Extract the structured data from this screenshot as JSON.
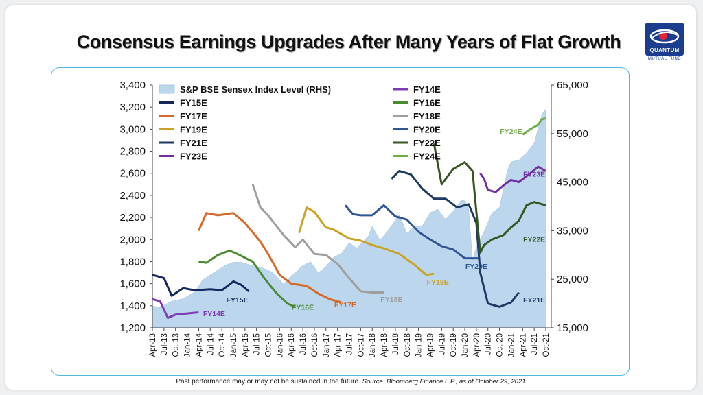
{
  "title": "Consensus Earnings Upgrades After Many Years of Flat Growth",
  "logo": {
    "name": "QUANTUM",
    "sub": "MUTUAL FUND"
  },
  "footer": {
    "note": "Past performance may or may not be sustained in the future.",
    "source": "Source: Bloomberg Finance L.P.; as of October 29, 2021"
  },
  "chart_data": {
    "type": "line",
    "title": "",
    "ylabel": "",
    "y2label": "",
    "ylim": [
      1200,
      3400
    ],
    "y2lim": [
      15000,
      65000
    ],
    "yticks": [
      "1,200",
      "1,400",
      "1,600",
      "1,800",
      "2,000",
      "2,200",
      "2,400",
      "2,600",
      "2,800",
      "3,000",
      "3,200",
      "3,400"
    ],
    "y2ticks": [
      "15,000",
      "25,000",
      "35,000",
      "45,000",
      "55,000",
      "65,000"
    ],
    "xticks": [
      "Apr-13",
      "Jul-13",
      "Oct-13",
      "Jan-14",
      "Apr-14",
      "Jul-14",
      "Oct-14",
      "Jan-15",
      "Apr-15",
      "Jul-15",
      "Oct-15",
      "Jan-16",
      "Apr-16",
      "Jul-16",
      "Oct-16",
      "Jan-17",
      "Apr-17",
      "Jul-17",
      "Oct-17",
      "Jan-18",
      "Apr-18",
      "Jul-18",
      "Oct-18",
      "Jan-19",
      "Apr-19",
      "Jul-19",
      "Oct-19",
      "Jan-20",
      "Apr-20",
      "Jul-20",
      "Oct-20",
      "Jan-21",
      "Apr-21",
      "Jul-21",
      "Oct-21"
    ],
    "legend_placement": "top-left",
    "area_series": {
      "name": "S&P BSE Sensex Index Level (RHS)",
      "color": "#bcd6ee",
      "x": [
        "Apr-13",
        "Jun-13",
        "Sep-13",
        "Dec-13",
        "Mar-14",
        "May-14",
        "Aug-14",
        "Nov-14",
        "Jan-15",
        "Mar-15",
        "Jun-15",
        "Aug-15",
        "Nov-15",
        "Feb-16",
        "Apr-16",
        "Jul-16",
        "Sep-16",
        "Nov-16",
        "Jan-17",
        "Mar-17",
        "May-17",
        "Jul-17",
        "Sep-17",
        "Dec-17",
        "Jan-18",
        "Mar-18",
        "May-18",
        "Aug-18",
        "Oct-18",
        "Dec-18",
        "Feb-19",
        "Apr-19",
        "Jun-19",
        "Aug-19",
        "Oct-19",
        "Dec-19",
        "Jan-20",
        "Feb-20",
        "Mar-20",
        "Apr-20",
        "Jun-20",
        "Aug-20",
        "Oct-20",
        "Dec-20",
        "Jan-21",
        "Mar-21",
        "May-21",
        "Jul-21",
        "Aug-21",
        "Sep-21",
        "Oct-21"
      ],
      "values": [
        19500,
        19200,
        20500,
        21000,
        22400,
        24800,
        26400,
        27900,
        28500,
        28500,
        27800,
        27500,
        26500,
        24000,
        25600,
        27800,
        28600,
        26300,
        27600,
        29500,
        30300,
        32500,
        31400,
        33900,
        35900,
        33000,
        34900,
        38300,
        34400,
        35900,
        36000,
        38700,
        39400,
        37300,
        39000,
        41200,
        41300,
        39500,
        28800,
        31700,
        34800,
        38600,
        39800,
        47300,
        49200,
        49500,
        51000,
        53000,
        56000,
        59000,
        60000
      ]
    },
    "series": [
      {
        "name": "FY14E",
        "color": "#7d3cb5",
        "x": [
          "Apr-13",
          "Jun-13",
          "Aug-13",
          "Oct-13",
          "Jan-14",
          "Apr-14"
        ],
        "values": [
          1460,
          1440,
          1290,
          1320,
          1330,
          1340
        ]
      },
      {
        "name": "FY15E",
        "color": "#13265e",
        "x": [
          "Apr-13",
          "Jul-13",
          "Sep-13",
          "Dec-13",
          "Mar-14",
          "Jul-14",
          "Oct-14",
          "Jan-15",
          "Mar-15",
          "May-15"
        ],
        "values": [
          1680,
          1650,
          1490,
          1560,
          1540,
          1550,
          1540,
          1620,
          1590,
          1530
        ]
      },
      {
        "name": "FY16E",
        "color": "#4b8a33",
        "x": [
          "Apr-14",
          "Jun-14",
          "Sep-14",
          "Dec-14",
          "Feb-15",
          "Jun-15",
          "Sep-15",
          "Dec-15",
          "Mar-16",
          "May-16"
        ],
        "values": [
          1800,
          1790,
          1860,
          1900,
          1870,
          1800,
          1650,
          1520,
          1420,
          1390
        ]
      },
      {
        "name": "FY17E",
        "color": "#d4692a",
        "x": [
          "Apr-14",
          "Jun-14",
          "Sep-14",
          "Jan-15",
          "Apr-15",
          "Aug-15",
          "Oct-15",
          "Jan-16",
          "Apr-16",
          "Aug-16",
          "Nov-16",
          "Feb-17",
          "May-17"
        ],
        "values": [
          2080,
          2240,
          2220,
          2240,
          2150,
          1980,
          1870,
          1680,
          1600,
          1580,
          1510,
          1460,
          1430
        ]
      },
      {
        "name": "FY18E",
        "color": "#9e9e9e",
        "x": [
          "Jun-15",
          "Aug-15",
          "Oct-15",
          "Feb-16",
          "May-16",
          "Jul-16",
          "Oct-16",
          "Jan-17",
          "Apr-17",
          "Jul-17",
          "Oct-17",
          "Jan-18",
          "Apr-18"
        ],
        "values": [
          2500,
          2290,
          2220,
          2040,
          1930,
          2000,
          1870,
          1860,
          1780,
          1650,
          1530,
          1520,
          1520
        ]
      },
      {
        "name": "FY19E",
        "color": "#c9a227",
        "x": [
          "Jun-16",
          "Aug-16",
          "Oct-16",
          "Jan-17",
          "Mar-17",
          "Jul-17",
          "Oct-17",
          "Jan-18",
          "Apr-18",
          "Aug-18",
          "Dec-18",
          "Mar-19",
          "May-19"
        ],
        "values": [
          2060,
          2290,
          2250,
          2110,
          2090,
          2010,
          1990,
          1950,
          1920,
          1870,
          1770,
          1680,
          1690
        ]
      },
      {
        "name": "FY20E",
        "color": "#2f5597",
        "x": [
          "Jun-17",
          "Aug-17",
          "Oct-17",
          "Jan-18",
          "Apr-18",
          "Jul-18",
          "Oct-18",
          "Jan-19",
          "Apr-19",
          "Jul-19",
          "Oct-19",
          "Jan-20",
          "Mar-20",
          "May-20"
        ],
        "values": [
          2310,
          2230,
          2220,
          2220,
          2310,
          2210,
          2180,
          2070,
          2000,
          1940,
          1910,
          1830,
          1830,
          1830
        ]
      },
      {
        "name": "FY21E",
        "color": "#1d3a63",
        "x": [
          "Jun-18",
          "Aug-18",
          "Nov-18",
          "Feb-19",
          "May-19",
          "Aug-19",
          "Nov-19",
          "Feb-20",
          "Apr-20",
          "May-20",
          "Jul-20",
          "Oct-20",
          "Jan-21",
          "Mar-21"
        ],
        "values": [
          2550,
          2620,
          2590,
          2460,
          2370,
          2370,
          2290,
          2320,
          2150,
          1700,
          1420,
          1390,
          1430,
          1520
        ]
      },
      {
        "name": "FY22E",
        "color": "#375623",
        "x": [
          "May-19",
          "Jul-19",
          "Oct-19",
          "Jan-20",
          "Mar-20",
          "May-20",
          "Jun-20",
          "Aug-20",
          "Nov-20",
          "Jan-21",
          "Mar-21",
          "May-21",
          "Jul-21",
          "Oct-21"
        ],
        "values": [
          2870,
          2500,
          2640,
          2700,
          2620,
          1880,
          1950,
          2000,
          2040,
          2110,
          2170,
          2310,
          2340,
          2310
        ]
      },
      {
        "name": "FY23E",
        "color": "#7030a0",
        "x": [
          "May-20",
          "Jun-20",
          "Jul-20",
          "Sep-20",
          "Nov-20",
          "Jan-21",
          "Mar-21",
          "Jun-21",
          "Aug-21",
          "Oct-21"
        ],
        "values": [
          2600,
          2550,
          2450,
          2430,
          2490,
          2540,
          2520,
          2600,
          2660,
          2620
        ]
      },
      {
        "name": "FY24E",
        "color": "#70ad47",
        "x": [
          "Apr-21",
          "Jun-21",
          "Aug-21",
          "Sep-21",
          "Oct-21"
        ],
        "values": [
          2950,
          3000,
          3040,
          3090,
          3100
        ]
      }
    ],
    "annotations": [
      {
        "text": "FY15E",
        "x": "Feb-15",
        "y": 1430,
        "color": "#13265e"
      },
      {
        "text": "FY14E",
        "x": "Aug-14",
        "y": 1305,
        "color": "#7d3cb5"
      },
      {
        "text": "FY16E",
        "x": "Jul-16",
        "y": 1365,
        "color": "#4b8a33"
      },
      {
        "text": "FY17E",
        "x": "Jun-17",
        "y": 1385,
        "color": "#d4692a"
      },
      {
        "text": "FY18E",
        "x": "Jun-18",
        "y": 1435,
        "color": "#9e9e9e"
      },
      {
        "text": "FY19E",
        "x": "Jun-19",
        "y": 1590,
        "color": "#c9a227"
      },
      {
        "text": "FY20E",
        "x": "Apr-20",
        "y": 1735,
        "color": "#2f5597"
      },
      {
        "text": "FY21E",
        "x": "Jul-21",
        "y": 1430,
        "color": "#1d3a63"
      },
      {
        "text": "FY22E",
        "x": "Jul-21",
        "y": 1980,
        "color": "#375623"
      },
      {
        "text": "FY23E",
        "x": "Jul-21",
        "y": 2570,
        "color": "#7030a0"
      },
      {
        "text": "FY24E",
        "x": "Jan-21",
        "y": 2960,
        "color": "#70ad47"
      }
    ]
  }
}
